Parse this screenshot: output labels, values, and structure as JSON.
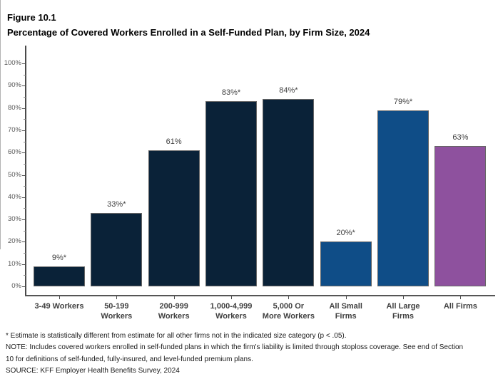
{
  "figure": {
    "label": "Figure 10.1",
    "title": "Percentage of Covered Workers Enrolled in a Self-Funded Plan, by Firm Size, 2024"
  },
  "chart_data": {
    "type": "bar",
    "title": "Percentage of Covered Workers Enrolled in a Self-Funded Plan, by Firm Size, 2024",
    "categories": [
      "3-49 Workers",
      "50-199\nWorkers",
      "200-999\nWorkers",
      "1,000-4,999\nWorkers",
      "5,000 Or\nMore Workers",
      "All Small\nFirms",
      "All Large\nFirms",
      "All Firms"
    ],
    "values": [
      9,
      33,
      61,
      83,
      84,
      20,
      79,
      63
    ],
    "value_labels": [
      "9%*",
      "33%*",
      "61%",
      "83%*",
      "84%*",
      "20%*",
      "79%*",
      "63%"
    ],
    "bar_colors": [
      "#0a2238",
      "#0a2238",
      "#0a2238",
      "#0a2238",
      "#0a2238",
      "#0f4d87",
      "#0f4d87",
      "#8e519e"
    ],
    "xlabel": "",
    "ylabel": "",
    "ylim": [
      0,
      100
    ],
    "y_tick_labels": [
      "0%",
      "10%",
      "20%",
      "30%",
      "40%",
      "50%",
      "60%",
      "70%",
      "80%",
      "90%",
      "100%"
    ],
    "y_minor_tick_step": 5,
    "grid": "off",
    "legend": "none",
    "colors": {
      "firm_size_bars": "#0a2238",
      "small_large_bars": "#0f4d87",
      "all_firms_bar": "#8e519e",
      "axis": "#4a4a4a",
      "tick_label": "#595959",
      "data_label": "#404040"
    }
  },
  "footnotes": {
    "lines": [
      "* Estimate is statistically different from estimate for all other firms not in the indicated size category (p < .05).",
      "NOTE: Includes covered workers enrolled in self-funded plans in which the firm's liability is limited through stoploss coverage. See end of Section",
      "10 for definitions of self-funded, fully-insured, and level-funded premium plans.",
      "SOURCE: KFF Employer Health Benefits Survey, 2024"
    ]
  }
}
